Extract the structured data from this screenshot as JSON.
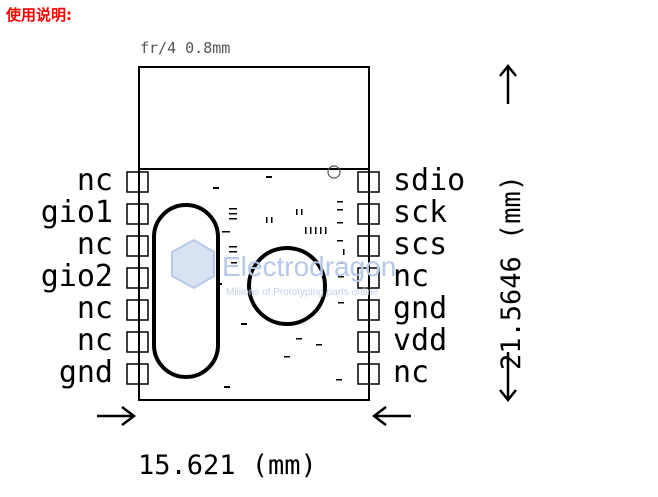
{
  "header": {
    "title": "使用说明:"
  },
  "board": {
    "material_note": "fr/4 0.8mm"
  },
  "pins": {
    "left": [
      "nc",
      "gio1",
      "nc",
      "gio2",
      "nc",
      "nc",
      "gnd"
    ],
    "right": [
      "sdio",
      "sck",
      "scs",
      "nc",
      "gnd",
      "vdd",
      "nc"
    ]
  },
  "dimensions": {
    "width": "15.621 (mm)",
    "height": "21.5646 (mm)"
  },
  "watermark": {
    "name": "Electrodragon",
    "tagline": "Millions of Prototyping parts online"
  },
  "colors": {
    "header": "#ff0000",
    "lines": "#000000",
    "watermark": "#b6c9e6"
  }
}
